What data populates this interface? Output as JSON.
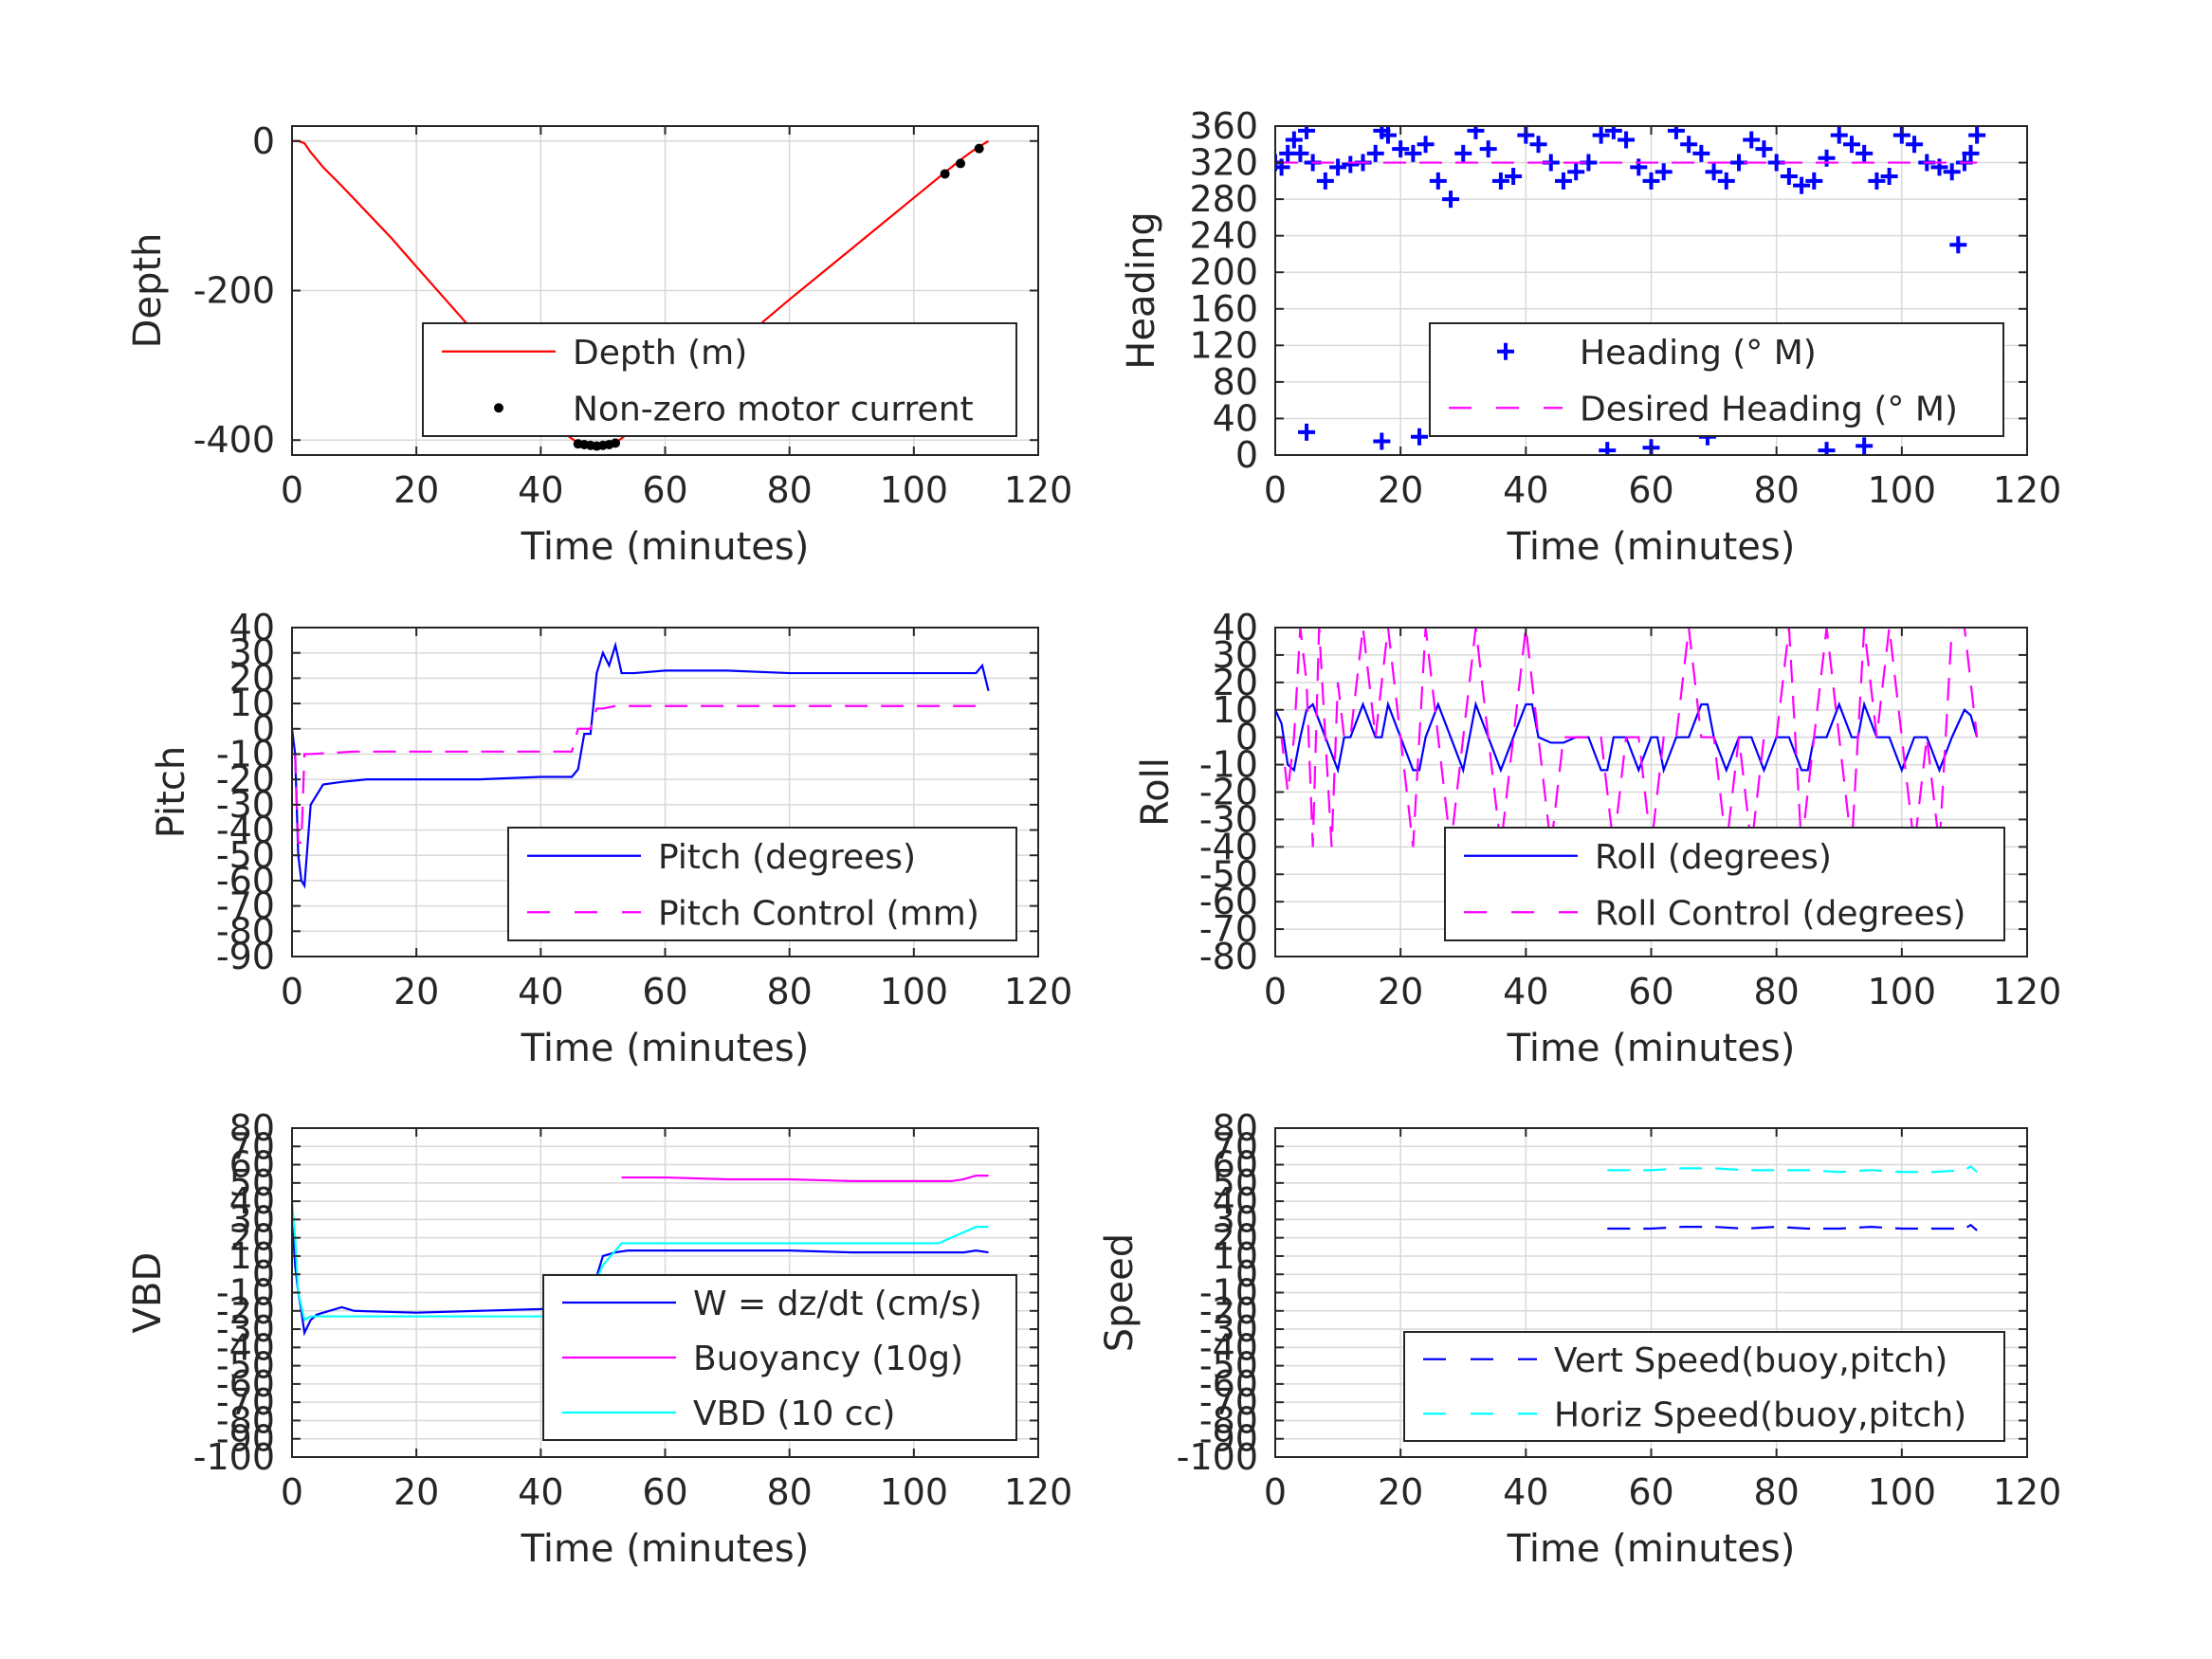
{
  "chart_data": [
    {
      "id": "depth",
      "type": "line",
      "xlabel": "Time (minutes)",
      "ylabel": "Depth",
      "xlim": [
        0,
        120
      ],
      "ylim": [
        -420,
        20
      ],
      "xticks": [
        0,
        20,
        40,
        60,
        80,
        100,
        120
      ],
      "yticks": [
        -400,
        -200,
        0
      ],
      "grid": true,
      "legend_position": "lower-right",
      "series": [
        {
          "name": "Depth (m)",
          "color": "#ff0000",
          "style": "solid",
          "x": [
            0,
            1,
            2,
            3,
            5,
            8,
            12,
            16,
            20,
            25,
            30,
            35,
            40,
            44,
            46,
            48,
            50,
            52,
            55,
            60,
            65,
            70,
            75,
            80,
            85,
            90,
            95,
            100,
            105,
            108,
            110,
            112
          ],
          "y": [
            0,
            0,
            -3,
            -15,
            -35,
            -60,
            -95,
            -130,
            -168,
            -215,
            -262,
            -310,
            -356,
            -392,
            -404,
            -407,
            -408,
            -404,
            -385,
            -350,
            -315,
            -281,
            -247,
            -212,
            -178,
            -144,
            -110,
            -76,
            -42,
            -22,
            -10,
            0
          ]
        },
        {
          "name": "Non-zero motor current",
          "color": "#000000",
          "style": "markers",
          "x": [
            46,
            47,
            48,
            49,
            50,
            51,
            52,
            105,
            107.5,
            110.5
          ],
          "y": [
            -405,
            -406,
            -407,
            -408,
            -407,
            -406,
            -404,
            -44,
            -30,
            -10
          ]
        }
      ]
    },
    {
      "id": "heading",
      "type": "scatter",
      "xlabel": "Time (minutes)",
      "ylabel": "Heading",
      "xlim": [
        0,
        120
      ],
      "ylim": [
        0,
        360
      ],
      "xticks": [
        0,
        20,
        40,
        60,
        80,
        100,
        120
      ],
      "yticks": [
        0,
        40,
        80,
        120,
        160,
        200,
        240,
        280,
        320,
        360
      ],
      "grid": true,
      "legend_position": "lower-right",
      "series": [
        {
          "name": "Heading (° M)",
          "color": "#0000ff",
          "style": "plus-markers",
          "x": [
            0,
            1,
            2,
            3,
            4,
            5,
            6,
            8,
            10,
            12,
            14,
            16,
            17,
            18,
            20,
            22,
            24,
            26,
            28,
            30,
            32,
            34,
            36,
            38,
            40,
            42,
            44,
            46,
            48,
            50,
            52,
            54,
            56,
            58,
            60,
            62,
            64,
            66,
            68,
            70,
            72,
            74,
            76,
            78,
            80,
            82,
            84,
            86,
            88,
            90,
            92,
            94,
            96,
            98,
            100,
            102,
            104,
            106,
            108,
            109,
            110,
            111,
            112,
            5,
            17,
            23,
            32,
            40,
            53,
            60,
            69,
            88,
            94,
            111,
            112
          ],
          "y": [
            320,
            315,
            330,
            345,
            330,
            355,
            320,
            300,
            315,
            318,
            320,
            330,
            355,
            350,
            335,
            330,
            340,
            300,
            280,
            330,
            355,
            335,
            300,
            305,
            350,
            340,
            320,
            300,
            310,
            320,
            350,
            355,
            345,
            315,
            300,
            310,
            355,
            340,
            330,
            310,
            300,
            320,
            345,
            335,
            320,
            305,
            295,
            300,
            325,
            350,
            340,
            330,
            300,
            305,
            350,
            340,
            320,
            315,
            310,
            230,
            320,
            330,
            350,
            25,
            15,
            20,
            30,
            35,
            5,
            8,
            20,
            5,
            10,
            40,
            75
          ]
        },
        {
          "name": "Desired Heading (° M)",
          "color": "#ff00ff",
          "style": "dashed",
          "x": [
            0,
            112
          ],
          "y": [
            320,
            320
          ]
        }
      ]
    },
    {
      "id": "pitch",
      "type": "line",
      "xlabel": "Time (minutes)",
      "ylabel": "Pitch",
      "xlim": [
        0,
        120
      ],
      "ylim": [
        -90,
        40
      ],
      "xticks": [
        0,
        20,
        40,
        60,
        80,
        100,
        120
      ],
      "yticks": [
        -90,
        -80,
        -70,
        -60,
        -50,
        -40,
        -30,
        -20,
        -10,
        0,
        10,
        20,
        30,
        40
      ],
      "grid": true,
      "legend_position": "lower-right",
      "series": [
        {
          "name": "Pitch (degrees)",
          "color": "#0000ff",
          "style": "solid",
          "x": [
            0,
            0.5,
            1,
            1.5,
            2,
            3,
            5,
            8,
            12,
            20,
            30,
            40,
            45,
            46,
            47,
            48,
            49,
            50,
            51,
            52,
            53,
            55,
            60,
            70,
            80,
            90,
            100,
            105,
            110,
            111,
            112
          ],
          "y": [
            0,
            -10,
            -50,
            -60,
            -62,
            -30,
            -22,
            -21,
            -20,
            -20,
            -20,
            -19,
            -19,
            -16,
            -2,
            -2,
            22,
            30,
            25,
            33,
            22,
            22,
            23,
            23,
            22,
            22,
            22,
            22,
            22,
            25,
            15
          ]
        },
        {
          "name": "Pitch Control (mm)",
          "color": "#ff00ff",
          "style": "dashed",
          "x": [
            0,
            0.5,
            1,
            1.5,
            2,
            3,
            10,
            20,
            30,
            40,
            45,
            46,
            48,
            49,
            50,
            52,
            60,
            80,
            100,
            112
          ],
          "y": [
            -10,
            -10,
            -45,
            -45,
            -10,
            -10,
            -9,
            -9,
            -9,
            -9,
            -9,
            0,
            0,
            8,
            8,
            9,
            9,
            9,
            9,
            9
          ]
        }
      ]
    },
    {
      "id": "roll",
      "type": "line",
      "xlabel": "Time (minutes)",
      "ylabel": "Roll",
      "xlim": [
        0,
        120
      ],
      "ylim": [
        -80,
        40
      ],
      "xticks": [
        0,
        20,
        40,
        60,
        80,
        100,
        120
      ],
      "yticks": [
        -80,
        -70,
        -60,
        -50,
        -40,
        -30,
        -20,
        -10,
        0,
        10,
        20,
        30,
        40
      ],
      "grid": true,
      "legend_position": "lower-right",
      "series": [
        {
          "name": "Roll (degrees)",
          "color": "#0000ff",
          "style": "solid",
          "x": [
            0,
            1,
            2,
            3,
            4,
            5,
            6,
            8,
            10,
            11,
            12,
            14,
            16,
            17,
            18,
            20,
            22,
            23,
            24,
            26,
            28,
            30,
            31,
            32,
            34,
            36,
            38,
            40,
            41,
            42,
            44,
            46,
            48,
            50,
            52,
            53,
            54,
            56,
            58,
            60,
            61,
            62,
            64,
            66,
            68,
            69,
            70,
            72,
            74,
            76,
            78,
            80,
            82,
            84,
            85,
            86,
            88,
            90,
            92,
            93,
            94,
            96,
            98,
            100,
            102,
            104,
            106,
            108,
            110,
            111,
            112
          ],
          "y": [
            10,
            5,
            -10,
            -12,
            0,
            10,
            12,
            0,
            -12,
            0,
            0,
            12,
            0,
            0,
            12,
            0,
            -12,
            -12,
            0,
            12,
            0,
            -12,
            0,
            12,
            0,
            -12,
            0,
            12,
            12,
            0,
            -2,
            -2,
            0,
            0,
            -12,
            -12,
            0,
            0,
            -12,
            0,
            0,
            -12,
            0,
            0,
            12,
            12,
            0,
            -12,
            0,
            0,
            -12,
            0,
            0,
            -12,
            -12,
            0,
            0,
            12,
            0,
            0,
            12,
            0,
            0,
            -12,
            0,
            0,
            -12,
            0,
            10,
            8,
            0
          ]
        },
        {
          "name": "Roll Control (degrees)",
          "color": "#ff00ff",
          "style": "dashed",
          "x": [
            0,
            1,
            2,
            3,
            4,
            5,
            6,
            7,
            8,
            9,
            10,
            11,
            12,
            14,
            16,
            18,
            20,
            22,
            23,
            24,
            26,
            28,
            30,
            32,
            34,
            36,
            38,
            40,
            42,
            44,
            46,
            48,
            50,
            52,
            54,
            56,
            58,
            60,
            62,
            64,
            66,
            68,
            70,
            72,
            74,
            76,
            78,
            80,
            82,
            84,
            86,
            88,
            90,
            92,
            94,
            96,
            98,
            100,
            102,
            104,
            106,
            108,
            110,
            112
          ],
          "y": [
            0,
            0,
            -20,
            0,
            40,
            20,
            -40,
            40,
            0,
            -40,
            20,
            0,
            0,
            40,
            0,
            40,
            0,
            -40,
            0,
            40,
            0,
            -40,
            0,
            40,
            0,
            -40,
            0,
            40,
            0,
            -40,
            0,
            0,
            0,
            0,
            -40,
            0,
            0,
            -40,
            0,
            0,
            40,
            0,
            0,
            -40,
            0,
            -40,
            0,
            0,
            40,
            -40,
            0,
            40,
            0,
            -40,
            40,
            0,
            40,
            0,
            -40,
            0,
            -40,
            40,
            40,
            0
          ]
        }
      ]
    },
    {
      "id": "vbd",
      "type": "line",
      "xlabel": "Time (minutes)",
      "ylabel": "VBD",
      "xlim": [
        0,
        120
      ],
      "ylim": [
        -100,
        80
      ],
      "xticks": [
        0,
        20,
        40,
        60,
        80,
        100,
        120
      ],
      "yticks": [
        -100,
        -90,
        -80,
        -70,
        -60,
        -50,
        -40,
        -30,
        -20,
        -10,
        0,
        10,
        20,
        30,
        40,
        50,
        60,
        70,
        80
      ],
      "ytick_labels": [
        "-100",
        "-90",
        "-80",
        "-70",
        "-60",
        "-50",
        "-40",
        "-30",
        "-20",
        "-10",
        "0",
        "10",
        "20",
        "30",
        "40",
        "50",
        "60",
        "70",
        "80"
      ],
      "grid": true,
      "legend_position": "lower-right",
      "series": [
        {
          "name": "W = dz/dt (cm/s)",
          "color": "#0000ff",
          "style": "solid",
          "x": [
            0,
            0.5,
            1,
            1.5,
            2,
            3,
            4,
            6,
            8,
            10,
            20,
            30,
            40,
            44,
            45,
            46,
            47,
            48,
            50,
            52,
            54,
            60,
            70,
            80,
            90,
            100,
            104,
            108,
            110,
            112
          ],
          "y": [
            30,
            5,
            -10,
            -20,
            -32,
            -25,
            -22,
            -20,
            -18,
            -20,
            -21,
            -20,
            -19,
            -18,
            -19,
            -18,
            -12,
            -12,
            10,
            12,
            13,
            13,
            13,
            13,
            12,
            12,
            12,
            12,
            13,
            12
          ]
        },
        {
          "name": "Buoyancy (10g)",
          "color": "#ff00ff",
          "style": "solid",
          "x": [
            53,
            60,
            70,
            80,
            90,
            100,
            104,
            106,
            108,
            110,
            112
          ],
          "y": [
            53,
            53,
            52,
            52,
            51,
            51,
            51,
            51,
            52,
            54,
            54
          ]
        },
        {
          "name": "VBD (10 cc)",
          "color": "#00ffff",
          "style": "solid",
          "x": [
            0,
            0.5,
            1,
            2,
            3,
            10,
            20,
            30,
            40,
            45,
            46,
            48,
            50,
            53,
            55,
            60,
            70,
            80,
            90,
            100,
            104,
            106,
            108,
            110,
            112
          ],
          "y": [
            40,
            20,
            -10,
            -25,
            -23,
            -23,
            -23,
            -23,
            -23,
            -23,
            -15,
            -10,
            5,
            17,
            17,
            17,
            17,
            17,
            17,
            17,
            17,
            20,
            23,
            26,
            26
          ]
        }
      ]
    },
    {
      "id": "speed",
      "type": "line",
      "xlabel": "Time (minutes)",
      "ylabel": "Speed",
      "xlim": [
        0,
        120
      ],
      "ylim": [
        -100,
        80
      ],
      "xticks": [
        0,
        20,
        40,
        60,
        80,
        100,
        120
      ],
      "yticks": [
        -100,
        -90,
        -80,
        -70,
        -60,
        -50,
        -40,
        -30,
        -20,
        -10,
        0,
        10,
        20,
        30,
        40,
        50,
        60,
        70,
        80
      ],
      "ytick_labels": [
        "-100",
        "-90",
        "-80",
        "-70",
        "-60",
        "-50",
        "-40",
        "-30",
        "-20",
        "-10",
        "0",
        "10",
        "20",
        "30",
        "40",
        "50",
        "60",
        "70",
        "80"
      ],
      "grid": true,
      "legend_position": "lower-right",
      "series": [
        {
          "name": "Vert Speed(buoy,pitch)",
          "color": "#0000ff",
          "style": "dashed",
          "x": [
            53,
            60,
            65,
            70,
            75,
            80,
            85,
            90,
            95,
            100,
            105,
            110,
            111,
            112
          ],
          "y": [
            25,
            25,
            26,
            26,
            25,
            26,
            25,
            25,
            26,
            25,
            25,
            25,
            27,
            24
          ]
        },
        {
          "name": "Horiz Speed(buoy,pitch)",
          "color": "#00ffff",
          "style": "dashed",
          "x": [
            53,
            60,
            65,
            70,
            75,
            80,
            85,
            90,
            95,
            100,
            105,
            110,
            111,
            112
          ],
          "y": [
            57,
            57,
            58,
            58,
            57,
            57,
            57,
            56,
            57,
            56,
            56,
            57,
            59,
            56
          ]
        }
      ]
    }
  ]
}
